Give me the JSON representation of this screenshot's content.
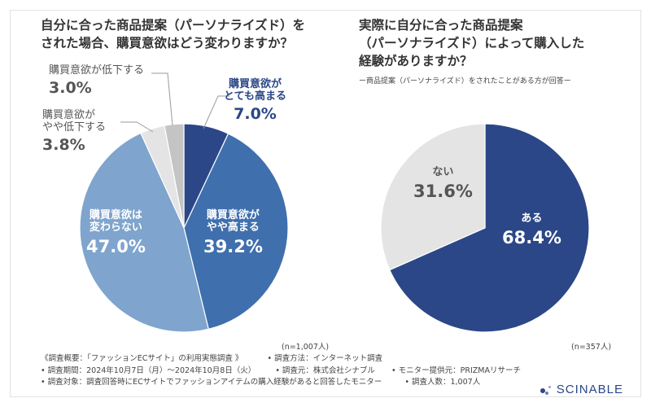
{
  "left": {
    "title_line1": "自分に合った商品提案（パーソナライズド）を",
    "title_line2": "された場合、購買意欲はどう変わりますか？",
    "n_label": "(n=1,007人)"
  },
  "right": {
    "title_line1": "実際に自分に合った商品提案",
    "title_line2": "（パーソナライズド）によって購入した",
    "title_line3": "経験がありますか？",
    "subnote": "ー商品提案（パーソナライズド）をされたことがある方が回答ー",
    "n_label": "(n=357人)"
  },
  "chart_data": [
    {
      "type": "pie",
      "title": "自分に合った商品提案（パーソナライズド）をされた場合、購買意欲はどう変わりますか？",
      "categories": [
        "購買意欲がとても高まる",
        "購買意欲がやや高まる",
        "購買意欲は変わらない",
        "購買意欲がやや低下する",
        "購買意欲が低下する"
      ],
      "values": [
        7.0,
        39.2,
        47.0,
        3.8,
        3.0
      ],
      "labels": [
        {
          "text_line1": "購買意欲が",
          "text_line2": "とても高まる",
          "pct": "7.0%"
        },
        {
          "text_line1": "購買意欲が",
          "text_line2": "やや高まる",
          "pct": "39.2%"
        },
        {
          "text_line1": "購買意欲は",
          "text_line2": "変わらない",
          "pct": "47.0%"
        },
        {
          "text_line1": "購買意欲が",
          "text_line2": "やや低下する",
          "pct": "3.8%"
        },
        {
          "text_line1": "購買意欲が低下する",
          "text_line2": "",
          "pct": "3.0%"
        }
      ],
      "colors": [
        "#2b4787",
        "#3f6fad",
        "#7fa4cd",
        "#e4e4e4",
        "#c4c4c4"
      ],
      "n": "n=1,007人"
    },
    {
      "type": "pie",
      "title": "実際に自分に合った商品提案（パーソナライズド）によって購入した経験がありますか？",
      "categories": [
        "ある",
        "ない"
      ],
      "values": [
        68.4,
        31.6
      ],
      "labels": [
        {
          "text_line1": "ある",
          "pct": "68.4%"
        },
        {
          "text_line1": "ない",
          "pct": "31.6%"
        }
      ],
      "colors": [
        "#2b4787",
        "#e4e4e4"
      ],
      "n": "n=357人"
    }
  ],
  "footer": {
    "line1a": "《調査概要：「ファッションECサイト」の利用実態調査 》",
    "line1b": "• 調査方法：インターネット調査",
    "line2a": "• 調査期間：2024年10月7日（月）〜2024年10月8日（火）",
    "line2b": "• 調査元：株式会社シナブル",
    "line2c": "• モニター提供元：PRIZMAリサーチ",
    "line3a": "• 調査対象：調査回答時にECサイトでファッションアイテムの購入経験があると回答したモニター",
    "line3b": "• 調査人数：1,007人"
  },
  "brand": {
    "name": "SCINABLE",
    "color": "#2b4787"
  }
}
